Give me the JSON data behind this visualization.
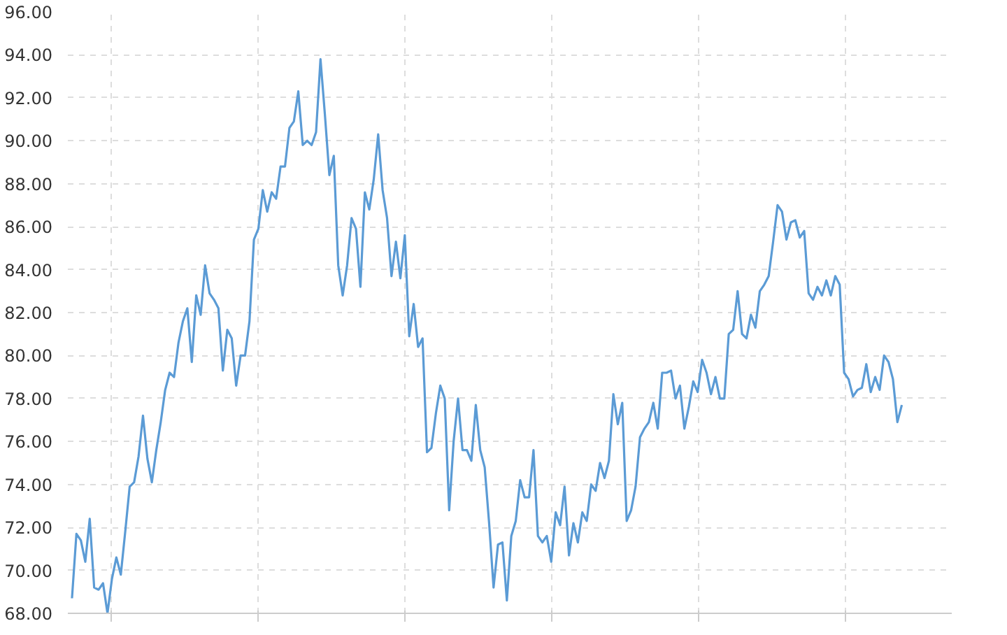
{
  "chart_data": {
    "type": "line",
    "categories": [
      null,
      null,
      null,
      null,
      null,
      null,
      null,
      null,
      null,
      null,
      null,
      null,
      null,
      null,
      null,
      null,
      null,
      null,
      null,
      null,
      null,
      null,
      null,
      null,
      null,
      null,
      null,
      null,
      null,
      null,
      null,
      null,
      null,
      null,
      null,
      null,
      null,
      null,
      null,
      null,
      null,
      null,
      null,
      null,
      null,
      null,
      null,
      null,
      null,
      null,
      null,
      null,
      null,
      null,
      null,
      null,
      null,
      null,
      null,
      null,
      null,
      null,
      null,
      null,
      null,
      null,
      null,
      null,
      null,
      null,
      null,
      null,
      null,
      null,
      null,
      null,
      null,
      null,
      null,
      null,
      null,
      null,
      null,
      null,
      null,
      null,
      null,
      null,
      null,
      null,
      null,
      null,
      null,
      null,
      null,
      null,
      null,
      null,
      null,
      null,
      null,
      null,
      null,
      null,
      null,
      null,
      null,
      null,
      null,
      null,
      null,
      null,
      null,
      null,
      null,
      null,
      null,
      null,
      null,
      null,
      null,
      null,
      null,
      null,
      null,
      null,
      null,
      null,
      null,
      null,
      null,
      null,
      null,
      null,
      null,
      null,
      null,
      null,
      null,
      null,
      null,
      null,
      null,
      null,
      null,
      null,
      null,
      null,
      null,
      null,
      null,
      null,
      null,
      null,
      null,
      null,
      null,
      null,
      null,
      null,
      null,
      null,
      null,
      null,
      null,
      null,
      null,
      null,
      null,
      null,
      null,
      null,
      null,
      null,
      null,
      null,
      null,
      null,
      null,
      null,
      null,
      null,
      null,
      null,
      null,
      null,
      null,
      null
    ],
    "values": [
      68.7,
      71.7,
      71.4,
      70.4,
      72.4,
      69.2,
      69.1,
      69.4,
      68.0,
      69.6,
      70.6,
      69.8,
      71.8,
      73.9,
      74.1,
      75.3,
      77.2,
      75.2,
      74.1,
      75.6,
      76.9,
      78.4,
      79.2,
      79.0,
      80.6,
      81.6,
      82.2,
      79.7,
      82.8,
      81.9,
      84.2,
      82.9,
      82.6,
      82.2,
      79.3,
      81.2,
      80.8,
      78.6,
      80.0,
      80.0,
      81.6,
      85.4,
      85.9,
      87.7,
      86.7,
      87.6,
      87.3,
      88.8,
      88.8,
      90.6,
      90.9,
      92.3,
      89.8,
      90.0,
      89.8,
      90.4,
      93.8,
      91.2,
      88.4,
      89.3,
      84.2,
      82.8,
      84.2,
      86.4,
      85.9,
      83.2,
      87.6,
      86.8,
      88.2,
      90.3,
      87.7,
      86.4,
      83.7,
      85.3,
      83.6,
      85.6,
      80.9,
      82.4,
      80.4,
      80.8,
      75.5,
      75.7,
      77.3,
      78.6,
      78.0,
      72.8,
      76.0,
      78.0,
      75.6,
      75.6,
      75.1,
      77.7,
      75.6,
      74.8,
      72.2,
      69.2,
      71.2,
      71.3,
      68.6,
      71.6,
      72.3,
      74.2,
      73.4,
      73.4,
      75.6,
      71.6,
      71.3,
      71.6,
      70.4,
      72.7,
      72.1,
      73.9,
      70.7,
      72.2,
      71.3,
      72.7,
      72.3,
      74.0,
      73.7,
      75.0,
      74.3,
      75.1,
      78.2,
      76.8,
      77.8,
      72.3,
      72.8,
      73.9,
      76.2,
      76.6,
      76.9,
      77.8,
      76.6,
      79.2,
      79.2,
      79.3,
      78.0,
      78.6,
      76.6,
      77.6,
      78.8,
      78.3,
      79.8,
      79.2,
      78.2,
      79.0,
      78.0,
      78.0,
      81.0,
      81.2,
      83.0,
      81.0,
      80.8,
      81.9,
      81.3,
      83.0,
      83.3,
      83.7,
      85.3,
      87.0,
      86.7,
      85.4,
      86.2,
      86.3,
      85.5,
      85.8,
      82.9,
      82.6,
      83.2,
      82.8,
      83.5,
      82.8,
      83.7,
      83.3,
      79.2,
      78.9,
      78.1,
      78.4,
      78.5,
      79.6,
      78.3,
      79.0,
      78.4,
      80.0,
      79.7,
      78.9,
      76.9,
      77.7
    ],
    "color": "#5b9bd5",
    "ylim": [
      68,
      96
    ],
    "yticks": [
      {
        "value": 68,
        "label": "68.00"
      },
      {
        "value": 70,
        "label": "70.00"
      },
      {
        "value": 72,
        "label": "72.00"
      },
      {
        "value": 74,
        "label": "74.00"
      },
      {
        "value": 76,
        "label": "76.00"
      },
      {
        "value": 78,
        "label": "78.00"
      },
      {
        "value": 80,
        "label": "80.00"
      },
      {
        "value": 82,
        "label": "82.00"
      },
      {
        "value": 84,
        "label": "84.00"
      },
      {
        "value": 86,
        "label": "86.00"
      },
      {
        "value": 88,
        "label": "88.00"
      },
      {
        "value": 90,
        "label": "90.00"
      },
      {
        "value": 92,
        "label": "92.00"
      },
      {
        "value": 94,
        "label": "94.00"
      },
      {
        "value": 96,
        "label": "96.00"
      }
    ],
    "grid": true,
    "marker": "none",
    "line_style": "solid",
    "tick_labels": "y"
  }
}
